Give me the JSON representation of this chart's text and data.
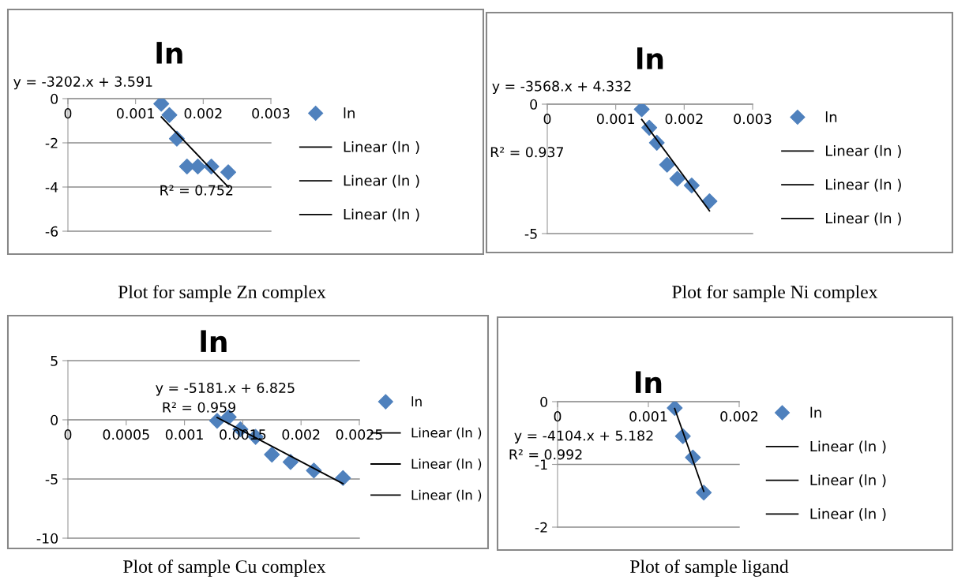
{
  "chart_data": [
    {
      "type": "scatter",
      "title": "ln",
      "xlim": [
        0,
        0.003
      ],
      "xticks": [
        0,
        0.001,
        0.002,
        0.003
      ],
      "ylim": [
        -6,
        0
      ],
      "yticks": [
        0,
        -2,
        -4,
        -6
      ],
      "grid": "y",
      "legend": "right",
      "series": [
        {
          "name": "ln",
          "color": "#4f81bd",
          "marker": "diamond",
          "x": [
            0.00138,
            0.0015,
            0.00161,
            0.00176,
            0.00192,
            0.00212,
            0.00237
          ],
          "values": [
            -0.23,
            -0.74,
            -1.81,
            -3.07,
            -3.07,
            -3.07,
            -3.33
          ]
        },
        {
          "name": "Linear (ln )",
          "type": "line",
          "color": "#000000",
          "x": [
            0.00138,
            0.00237
          ],
          "values": [
            -0.83,
            -4.0
          ]
        },
        {
          "name": "Linear (ln )",
          "type": "line",
          "color": "#000000"
        },
        {
          "name": "Linear (ln )",
          "type": "line",
          "color": "#000000"
        }
      ],
      "annotations": [
        "y = -3202.x + 3.591",
        "R² = 0.752",
        "Plot for sample Zn complex"
      ]
    },
    {
      "type": "scatter",
      "title": "ln",
      "xlim": [
        0,
        0.003
      ],
      "xticks": [
        0,
        0.001,
        0.002,
        0.003
      ],
      "ylim": [
        -5,
        0
      ],
      "yticks": [
        0,
        -5
      ],
      "grid": "y",
      "legend": "right",
      "series": [
        {
          "name": "ln",
          "color": "#4f81bd",
          "marker": "diamond",
          "x": [
            0.00138,
            0.00149,
            0.0016,
            0.00175,
            0.0019,
            0.00211,
            0.00237
          ],
          "values": [
            -0.2,
            -0.91,
            -1.49,
            -2.34,
            -2.88,
            -3.14,
            -3.75
          ]
        },
        {
          "name": "Linear (ln )",
          "type": "line",
          "color": "#000000",
          "x": [
            0.00138,
            0.00237
          ],
          "values": [
            -0.59,
            -4.12
          ]
        },
        {
          "name": "Linear (ln )",
          "type": "line",
          "color": "#000000"
        },
        {
          "name": "Linear (ln )",
          "type": "line",
          "color": "#000000"
        }
      ],
      "annotations": [
        "y = -3568.x + 4.332",
        "R² = 0.937",
        "Plot for sample Ni complex"
      ]
    },
    {
      "type": "scatter",
      "title": "ln",
      "xlim": [
        0,
        0.0025
      ],
      "xticks": [
        0,
        0.0005,
        0.001,
        0.0015,
        0.002,
        0.0025
      ],
      "ylim": [
        -10,
        5
      ],
      "yticks": [
        5,
        0,
        -5,
        -10
      ],
      "grid": "y",
      "legend": "right",
      "series": [
        {
          "name": "ln",
          "color": "#4f81bd",
          "marker": "diamond",
          "x": [
            0.00128,
            0.00138,
            0.00148,
            0.00161,
            0.00175,
            0.00191,
            0.00211,
            0.00236
          ],
          "values": [
            -0.08,
            0.23,
            -0.8,
            -1.44,
            -2.94,
            -3.56,
            -4.28,
            -4.92
          ]
        },
        {
          "name": "Linear (ln )",
          "type": "line",
          "color": "#000000",
          "x": [
            0.00128,
            0.00236
          ],
          "values": [
            0.19,
            -5.4
          ]
        },
        {
          "name": "Linear (ln )",
          "type": "line",
          "color": "#000000"
        },
        {
          "name": "Linear (ln )",
          "type": "line",
          "color": "#000000"
        }
      ],
      "annotations": [
        "y = -5181.x + 6.825",
        "R² = 0.959",
        "Plot of sample Cu complex"
      ]
    },
    {
      "type": "scatter",
      "title": "ln",
      "xlim": [
        0,
        0.002
      ],
      "xticks": [
        0,
        0.001,
        0.002
      ],
      "ylim": [
        -2,
        0
      ],
      "yticks": [
        0,
        -1,
        -2
      ],
      "grid": "y",
      "legend": "right",
      "series": [
        {
          "name": "ln",
          "color": "#4f81bd",
          "marker": "diamond",
          "x": [
            0.00129,
            0.00138,
            0.00149,
            0.00161
          ],
          "values": [
            -0.1,
            -0.55,
            -0.89,
            -1.45
          ]
        },
        {
          "name": "Linear (ln )",
          "type": "line",
          "color": "#000000",
          "x": [
            0.00129,
            0.00161
          ],
          "values": [
            -0.11,
            -1.43
          ]
        },
        {
          "name": "Linear (ln )",
          "type": "line",
          "color": "#000000"
        },
        {
          "name": "Linear (ln )",
          "type": "line",
          "color": "#000000"
        }
      ],
      "annotations": [
        "y = -4104.x + 5.182",
        "R² = 0.992",
        "Plot of sample ligand"
      ]
    }
  ]
}
